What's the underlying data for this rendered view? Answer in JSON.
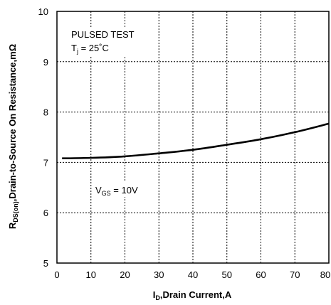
{
  "chart_data": {
    "type": "line",
    "xlabel": {
      "main": "I",
      "sub": "D",
      "rest": ",Drain Current,A"
    },
    "ylabel": {
      "main": "R",
      "sub": "DS(on)",
      "rest": ",Drain-to-Source On Resistance,mΩ"
    },
    "xlim": [
      0,
      80
    ],
    "ylim": [
      5,
      10
    ],
    "xticks": [
      0,
      10,
      20,
      30,
      40,
      50,
      60,
      70,
      80
    ],
    "yticks": [
      5,
      6,
      7,
      8,
      9,
      10
    ],
    "grid": true,
    "annotations": {
      "pulsed": "PULSED TEST",
      "tj_main": "T",
      "tj_sub": "j",
      "tj_rest": " = 25˚C",
      "vgs_main": "V",
      "vgs_sub": "GS",
      "vgs_rest": " = 10V"
    },
    "series": [
      {
        "x": [
          1.5,
          10,
          20,
          30,
          40,
          50,
          60,
          70,
          80
        ],
        "y": [
          7.08,
          7.09,
          7.12,
          7.18,
          7.25,
          7.35,
          7.46,
          7.6,
          7.77
        ]
      }
    ]
  }
}
